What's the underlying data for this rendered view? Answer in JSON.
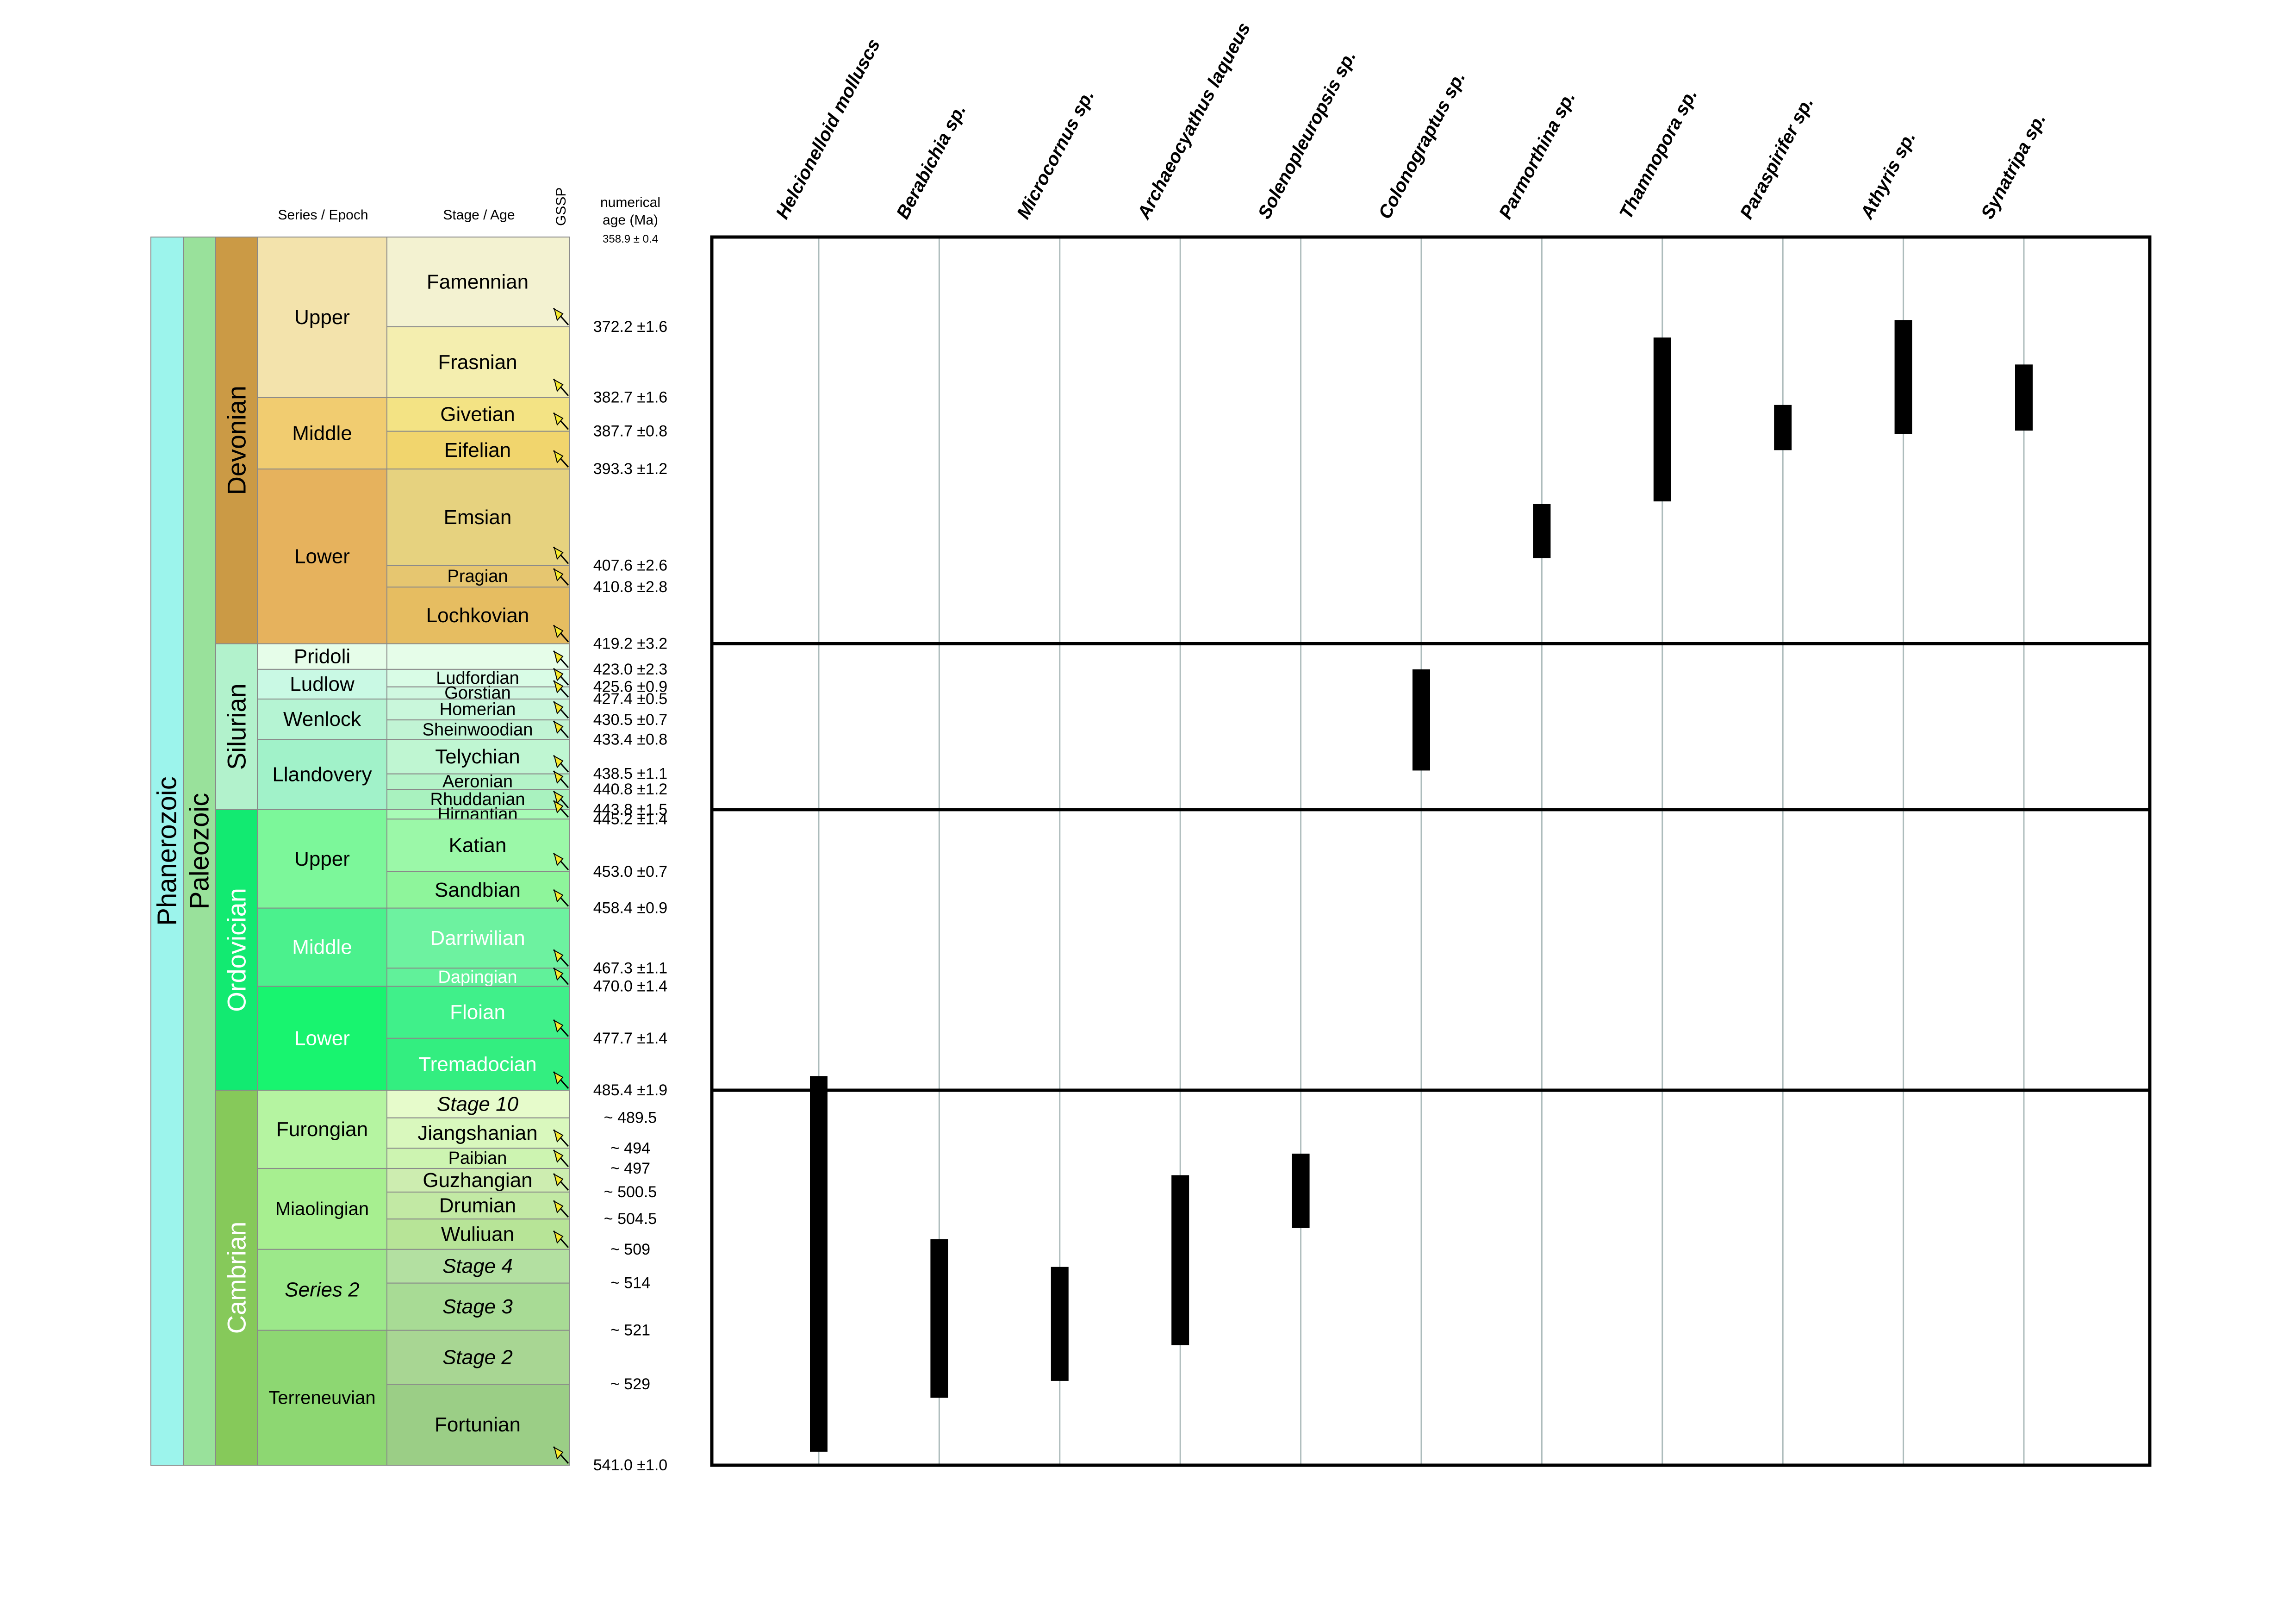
{
  "headers": {
    "series": "Series / Epoch",
    "stage": "Stage / Age",
    "gssp": "GSSP",
    "numerical_line1": "numerical",
    "numerical_line2": "age (Ma)",
    "top_age": "358.9 ± 0.4"
  },
  "eonothem": {
    "label": "Phanerozoic",
    "color": "#9cf4ec"
  },
  "erathem": {
    "label": "Paleozoic",
    "color": "#99e19b"
  },
  "systems": [
    {
      "label": "Devonian",
      "top": 358.9,
      "bottom": 419.2,
      "color": "#cb9a45",
      "text": "#000000"
    },
    {
      "label": "Silurian",
      "top": 419.2,
      "bottom": 443.8,
      "color": "#b2f2cc",
      "text": "#000000"
    },
    {
      "label": "Ordovician",
      "top": 443.8,
      "bottom": 485.4,
      "color": "#12ea71",
      "text": "#ffffff"
    },
    {
      "label": "Cambrian",
      "top": 485.4,
      "bottom": 541.0,
      "color": "#86c95a",
      "text": "#ffffff"
    }
  ],
  "series": [
    {
      "label": "Upper",
      "top": 358.9,
      "bottom": 382.7,
      "color": "#f3e3ac",
      "text": "#000000",
      "italic": false
    },
    {
      "label": "Middle",
      "top": 382.7,
      "bottom": 393.3,
      "color": "#f1cc70",
      "text": "#000000",
      "italic": false
    },
    {
      "label": "Lower",
      "top": 393.3,
      "bottom": 419.2,
      "color": "#e6b25d",
      "text": "#000000",
      "italic": false
    },
    {
      "label": "Pridoli",
      "top": 419.2,
      "bottom": 423.0,
      "color": "#e6fde9",
      "text": "#000000",
      "italic": false
    },
    {
      "label": "Ludlow",
      "top": 423.0,
      "bottom": 427.4,
      "color": "#c9f9e4",
      "text": "#000000",
      "italic": false
    },
    {
      "label": "Wenlock",
      "top": 427.4,
      "bottom": 433.4,
      "color": "#b5f4d3",
      "text": "#000000",
      "italic": false
    },
    {
      "label": "Llandovery",
      "top": 433.4,
      "bottom": 443.8,
      "color": "#a1f2c9",
      "text": "#000000",
      "italic": false
    },
    {
      "label": "Upper",
      "top": 443.8,
      "bottom": 458.4,
      "color": "#7cf79a",
      "text": "#000000",
      "italic": false
    },
    {
      "label": "Middle",
      "top": 458.4,
      "bottom": 470.0,
      "color": "#4bf18d",
      "text": "#ffffff",
      "italic": false
    },
    {
      "label": "Lower",
      "top": 470.0,
      "bottom": 485.4,
      "color": "#18f46f",
      "text": "#ffffff",
      "italic": false
    },
    {
      "label": "Furongian",
      "top": 485.4,
      "bottom": 497,
      "color": "#b5f4a1",
      "text": "#000000",
      "italic": false
    },
    {
      "label": "Miaolingian",
      "top": 497,
      "bottom": 509,
      "color": "#a7ef90",
      "text": "#000000",
      "italic": false
    },
    {
      "label": "Series 2",
      "top": 509,
      "bottom": 521,
      "color": "#9ce88a",
      "text": "#000000",
      "italic": true
    },
    {
      "label": "Terreneuvian",
      "top": 521,
      "bottom": 541.0,
      "color": "#8dd772",
      "text": "#000000",
      "italic": false
    }
  ],
  "stages": [
    {
      "label": "Famennian",
      "top": 358.9,
      "bottom": 372.2,
      "color": "#f3f2d1",
      "text": "#000000",
      "italic": false,
      "gssp": true
    },
    {
      "label": "Frasnian",
      "top": 372.2,
      "bottom": 382.7,
      "color": "#f4eeaf",
      "text": "#000000",
      "italic": false,
      "gssp": true
    },
    {
      "label": "Givetian",
      "top": 382.7,
      "bottom": 387.7,
      "color": "#f3e384",
      "text": "#000000",
      "italic": false,
      "gssp": true
    },
    {
      "label": "Eifelian",
      "top": 387.7,
      "bottom": 393.3,
      "color": "#f1d56d",
      "text": "#000000",
      "italic": false,
      "gssp": true
    },
    {
      "label": "Emsian",
      "top": 393.3,
      "bottom": 407.6,
      "color": "#e6d27f",
      "text": "#000000",
      "italic": false,
      "gssp": true
    },
    {
      "label": "Pragian",
      "top": 407.6,
      "bottom": 410.8,
      "color": "#e6c670",
      "text": "#000000",
      "italic": false,
      "gssp": true
    },
    {
      "label": "Lochkovian",
      "top": 410.8,
      "bottom": 419.2,
      "color": "#e6bd61",
      "text": "#000000",
      "italic": false,
      "gssp": true
    },
    {
      "label": "",
      "top": 419.2,
      "bottom": 423.0,
      "color": "#e6fde9",
      "text": "#000000",
      "italic": false,
      "gssp": true
    },
    {
      "label": "Ludfordian",
      "top": 423.0,
      "bottom": 425.6,
      "color": "#d9fce6",
      "text": "#000000",
      "italic": false,
      "gssp": true
    },
    {
      "label": "Gorstian",
      "top": 425.6,
      "bottom": 427.4,
      "color": "#cff8e0",
      "text": "#000000",
      "italic": false,
      "gssp": true
    },
    {
      "label": "Homerian",
      "top": 427.4,
      "bottom": 430.5,
      "color": "#c9f7db",
      "text": "#000000",
      "italic": false,
      "gssp": true
    },
    {
      "label": "Sheinwoodian",
      "top": 430.5,
      "bottom": 433.4,
      "color": "#c1f4d4",
      "text": "#000000",
      "italic": false,
      "gssp": true
    },
    {
      "label": "Telychian",
      "top": 433.4,
      "bottom": 438.5,
      "color": "#bff6d2",
      "text": "#000000",
      "italic": false,
      "gssp": true
    },
    {
      "label": "Aeronian",
      "top": 438.5,
      "bottom": 440.8,
      "color": "#b4f4c8",
      "text": "#000000",
      "italic": false,
      "gssp": true
    },
    {
      "label": "Rhuddanian",
      "top": 440.8,
      "bottom": 443.8,
      "color": "#a9f2bf",
      "text": "#000000",
      "italic": false,
      "gssp": true
    },
    {
      "label": "Hirnantian",
      "top": 443.8,
      "bottom": 445.2,
      "color": "#a8fbb6",
      "text": "#000000",
      "italic": false,
      "gssp": true
    },
    {
      "label": "Katian",
      "top": 445.2,
      "bottom": 453.0,
      "color": "#9bf8a8",
      "text": "#000000",
      "italic": false,
      "gssp": true
    },
    {
      "label": "Sandbian",
      "top": 453.0,
      "bottom": 458.4,
      "color": "#8ef59b",
      "text": "#000000",
      "italic": false,
      "gssp": true
    },
    {
      "label": "Darriwilian",
      "top": 458.4,
      "bottom": 467.3,
      "color": "#6df2a0",
      "text": "#ffffff",
      "italic": false,
      "gssp": true
    },
    {
      "label": "Dapingian",
      "top": 467.3,
      "bottom": 470.0,
      "color": "#61f19a",
      "text": "#ffffff",
      "italic": false,
      "gssp": true
    },
    {
      "label": "Floian",
      "top": 470.0,
      "bottom": 477.7,
      "color": "#40f08a",
      "text": "#ffffff",
      "italic": false,
      "gssp": true
    },
    {
      "label": "Tremadocian",
      "top": 477.7,
      "bottom": 485.4,
      "color": "#33ee80",
      "text": "#ffffff",
      "italic": false,
      "gssp": true
    },
    {
      "label": "Stage 10",
      "top": 485.4,
      "bottom": 489.5,
      "color": "#e6fbcb",
      "text": "#000000",
      "italic": true,
      "gssp": false
    },
    {
      "label": "Jiangshanian",
      "top": 489.5,
      "bottom": 494,
      "color": "#d9f8bd",
      "text": "#000000",
      "italic": false,
      "gssp": true
    },
    {
      "label": "Paibian",
      "top": 494,
      "bottom": 497,
      "color": "#cdf4b1",
      "text": "#000000",
      "italic": false,
      "gssp": true
    },
    {
      "label": "Guzhangian",
      "top": 497,
      "bottom": 500.5,
      "color": "#cdedb0",
      "text": "#000000",
      "italic": false,
      "gssp": true
    },
    {
      "label": "Drumian",
      "top": 500.5,
      "bottom": 504.5,
      "color": "#c2e9a4",
      "text": "#000000",
      "italic": false,
      "gssp": true
    },
    {
      "label": "Wuliuan",
      "top": 504.5,
      "bottom": 509,
      "color": "#b7e497",
      "text": "#000000",
      "italic": false,
      "gssp": true
    },
    {
      "label": "Stage 4",
      "top": 509,
      "bottom": 514,
      "color": "#b3e0a1",
      "text": "#000000",
      "italic": true,
      "gssp": false
    },
    {
      "label": "Stage 3",
      "top": 514,
      "bottom": 521,
      "color": "#a8db95",
      "text": "#000000",
      "italic": true,
      "gssp": false
    },
    {
      "label": "Stage 2",
      "top": 521,
      "bottom": 529,
      "color": "#a8d693",
      "text": "#000000",
      "italic": true,
      "gssp": false
    },
    {
      "label": "Fortunian",
      "top": 529,
      "bottom": 541.0,
      "color": "#9bce86",
      "text": "#000000",
      "italic": false,
      "gssp": true
    }
  ],
  "age_labels": [
    {
      "value": 372.2,
      "label": "372.2 ±1.6"
    },
    {
      "value": 382.7,
      "label": "382.7 ±1.6"
    },
    {
      "value": 387.7,
      "label": "387.7 ±0.8"
    },
    {
      "value": 393.3,
      "label": "393.3 ±1.2"
    },
    {
      "value": 407.6,
      "label": "407.6 ±2.6"
    },
    {
      "value": 410.8,
      "label": "410.8 ±2.8"
    },
    {
      "value": 419.2,
      "label": "419.2 ±3.2"
    },
    {
      "value": 423.0,
      "label": "423.0 ±2.3"
    },
    {
      "value": 425.6,
      "label": "425.6 ±0.9"
    },
    {
      "value": 427.4,
      "label": "427.4 ±0.5"
    },
    {
      "value": 430.5,
      "label": "430.5 ±0.7"
    },
    {
      "value": 433.4,
      "label": "433.4 ±0.8"
    },
    {
      "value": 438.5,
      "label": "438.5 ±1.1"
    },
    {
      "value": 440.8,
      "label": "440.8 ±1.2"
    },
    {
      "value": 443.8,
      "label": "443.8 ±1.5"
    },
    {
      "value": 445.2,
      "label": "445.2 ±1.4"
    },
    {
      "value": 453.0,
      "label": "453.0 ±0.7"
    },
    {
      "value": 458.4,
      "label": "458.4 ±0.9"
    },
    {
      "value": 467.3,
      "label": "467.3 ±1.1"
    },
    {
      "value": 470.0,
      "label": "470.0 ±1.4"
    },
    {
      "value": 477.7,
      "label": "477.7 ±1.4"
    },
    {
      "value": 485.4,
      "label": "485.4 ±1.9"
    },
    {
      "value": 489.5,
      "label": "~ 489.5"
    },
    {
      "value": 494,
      "label": "~ 494"
    },
    {
      "value": 497,
      "label": "~ 497"
    },
    {
      "value": 500.5,
      "label": "~ 500.5"
    },
    {
      "value": 504.5,
      "label": "~ 504.5"
    },
    {
      "value": 509,
      "label": "~ 509"
    },
    {
      "value": 514,
      "label": "~ 514"
    },
    {
      "value": 521,
      "label": "~ 521"
    },
    {
      "value": 529,
      "label": "~ 529"
    },
    {
      "value": 541.0,
      "label": "541.0 ±1.0"
    }
  ],
  "chart_data": {
    "type": "range-chart",
    "age_range": [
      358.9,
      541.0
    ],
    "boundaries": [
      419.2,
      443.8,
      485.4
    ],
    "taxa": [
      {
        "name": "Helcionelloid molluscs",
        "first": 539.0,
        "last": 483.3
      },
      {
        "name": "Berabichia sp.",
        "first": 531.0,
        "last": 507.5
      },
      {
        "name": "Microcornus sp.",
        "first": 528.5,
        "last": 511.6
      },
      {
        "name": "Archaeocyathus laqueus",
        "first": 523.2,
        "last": 498.0
      },
      {
        "name": "Solenopleuropsis sp.",
        "first": 505.8,
        "last": 494.8
      },
      {
        "name": "Colonograptus sp.",
        "first": 438.0,
        "last": 423.0
      },
      {
        "name": "Parmorthina sp.",
        "first": 406.5,
        "last": 398.5
      },
      {
        "name": "Thamnopora sp.",
        "first": 398.1,
        "last": 373.8
      },
      {
        "name": "Paraspirifer sp.",
        "first": 390.5,
        "last": 383.8
      },
      {
        "name": "Athyris sp.",
        "first": 388.1,
        "last": 371.2
      },
      {
        "name": "Synatripa sp.",
        "first": 387.6,
        "last": 377.8
      }
    ]
  }
}
